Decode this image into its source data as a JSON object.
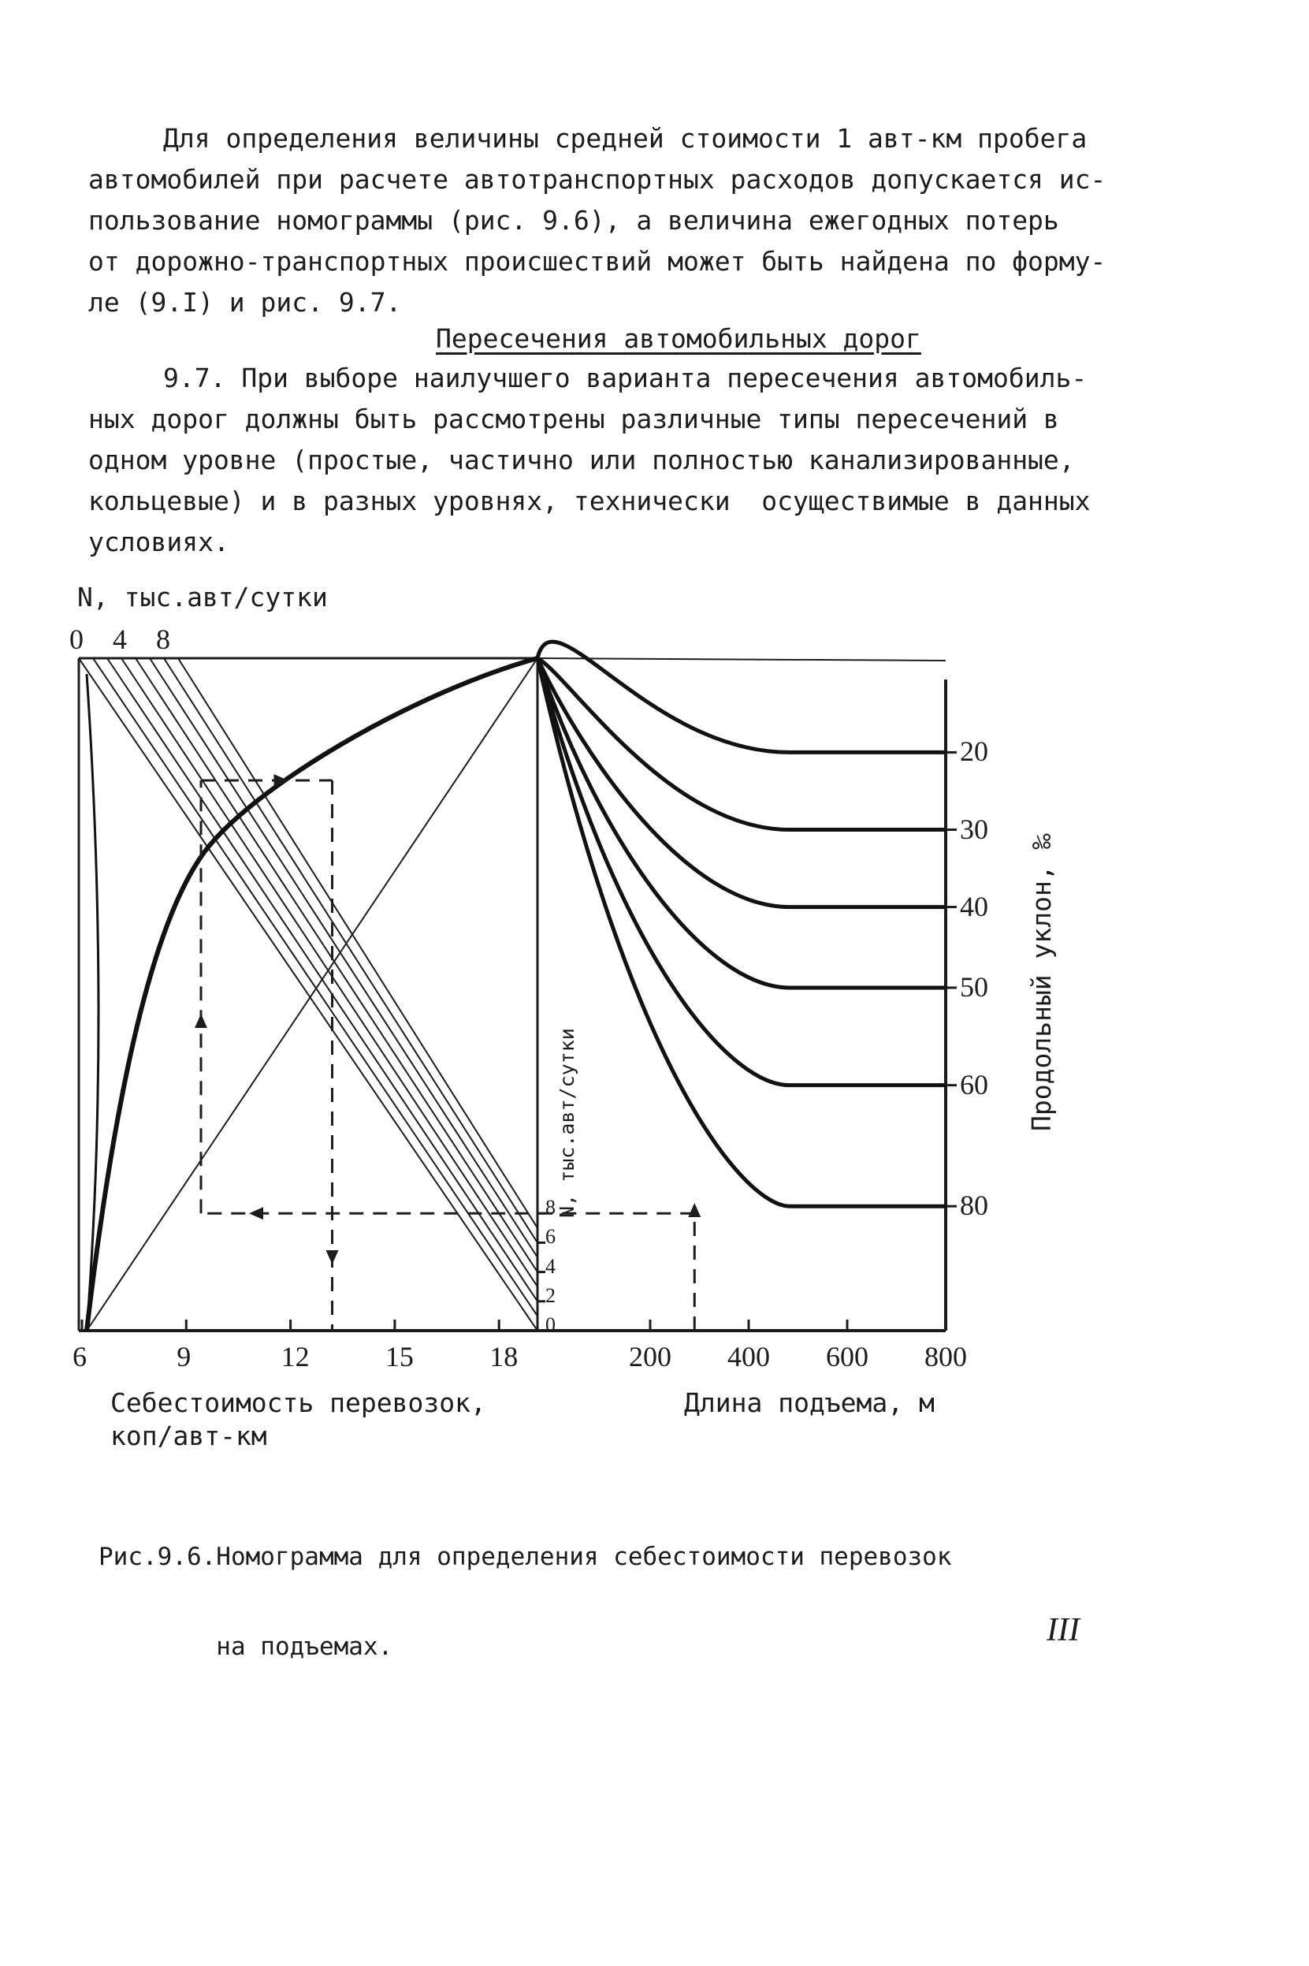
{
  "paragraph1": [
    "Для определения величины средней стоимости 1 авт-км пробега",
    "автомобилей при расчете автотранспортных расходов допускается ис-",
    "пользование номограммы (рис. 9.6), а величина ежегодных потерь",
    "от дорожно-транспортных происшествий может быть найдена по форму-",
    "ле (9.I) и рис. 9.7."
  ],
  "section_heading": "Пересечения автомобильных дорог",
  "paragraph2": [
    "9.7. При выборе наилучшего варианта пересечения автомобиль-",
    "ных дорог должны быть рассмотрены различные типы пересечений в",
    "одном уровне (простые, частично или полностью канализированные,",
    "кольцевые) и в разных уровнях, технически  осуществимые в данных",
    "условиях."
  ],
  "chart_data": {
    "type": "nomogram",
    "top_axis": {
      "label": "N, тыс.авт/сутки",
      "ticks": [
        "0",
        "4",
        "8"
      ],
      "values": [
        0,
        4,
        8
      ]
    },
    "left_x_axis": {
      "label_line1": "Себестоимость перевозок,",
      "label_line2": "коп/авт-км",
      "ticks": [
        "6",
        "9",
        "12",
        "15",
        "18"
      ],
      "values": [
        6,
        9,
        12,
        15,
        18
      ],
      "range": [
        6,
        20
      ]
    },
    "right_x_axis": {
      "label": "Длина подъема, м",
      "ticks": [
        "200",
        "400",
        "600",
        "800"
      ],
      "values": [
        200,
        400,
        600,
        800
      ],
      "range": [
        0,
        800
      ]
    },
    "middle_axis": {
      "label": "N, тыс.авт/сутки",
      "ticks": [
        "0",
        "2",
        "4",
        "6",
        "8"
      ],
      "values": [
        0,
        2,
        4,
        6,
        8
      ]
    },
    "right_y_axis": {
      "label": "Продольный уклон, ‰",
      "ticks": [
        "20",
        "30",
        "40",
        "50",
        "60",
        "80"
      ],
      "values": [
        20,
        30,
        40,
        50,
        60,
        80
      ]
    },
    "series": [
      {
        "name": "20",
        "asymptote_fraction_of_height": 0.14
      },
      {
        "name": "30",
        "asymptote_fraction_of_height": 0.255
      },
      {
        "name": "40",
        "asymptote_fraction_of_height": 0.37
      },
      {
        "name": "50",
        "asymptote_fraction_of_height": 0.49
      },
      {
        "name": "60",
        "asymptote_fraction_of_height": 0.635
      },
      {
        "name": "80",
        "asymptote_fraction_of_height": 0.815
      }
    ],
    "example_path": {
      "length_m": 290,
      "slope_permille": 80,
      "N_thousand_per_day": 8,
      "cost_kop_per_km": 13.2
    }
  },
  "caption": [
    "Рис.9.6.Номограмма для определения себестоимости перевозок",
    "        на подъемах."
  ],
  "page_number": "III"
}
